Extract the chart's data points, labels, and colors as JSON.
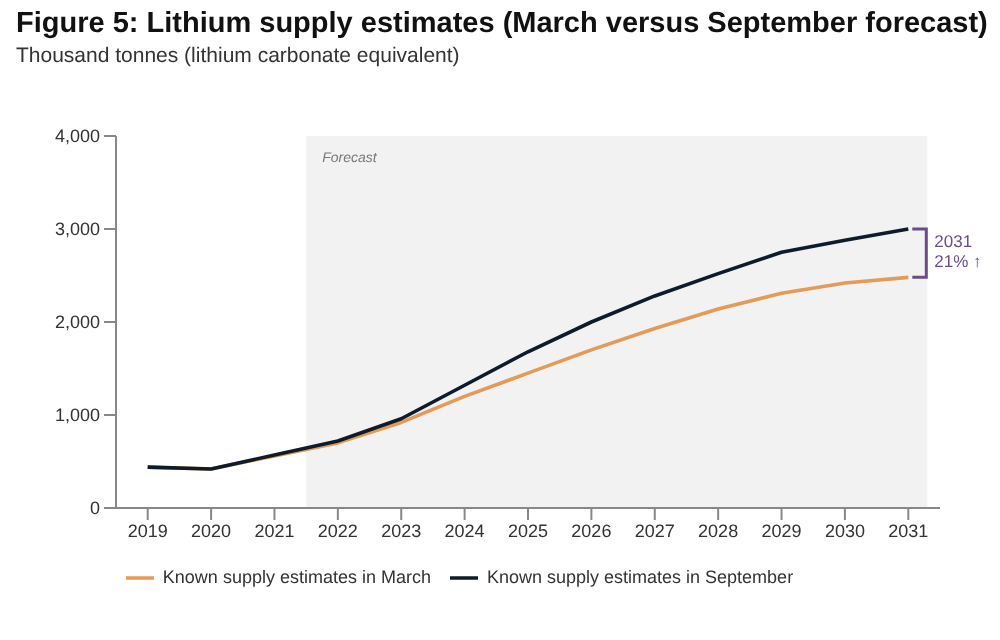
{
  "chart_data": {
    "type": "line",
    "title": "Figure 5: Lithium supply estimates (March versus September forecast)",
    "subtitle": "Thousand tonnes (lithium carbonate equivalent)",
    "x": [
      2019,
      2020,
      2021,
      2022,
      2023,
      2024,
      2025,
      2026,
      2027,
      2028,
      2029,
      2030,
      2031
    ],
    "series": [
      {
        "name": "Known supply estimates in March",
        "color": "#e39b57",
        "values": [
          440,
          420,
          560,
          700,
          920,
          1200,
          1450,
          1700,
          1930,
          2140,
          2310,
          2420,
          2480
        ]
      },
      {
        "name": "Known supply estimates in September",
        "color": "#0d1b2a",
        "values": [
          440,
          420,
          570,
          720,
          960,
          1320,
          1680,
          2000,
          2280,
          2520,
          2750,
          2880,
          3000
        ]
      }
    ],
    "xlim": [
      2018.5,
      2031.5
    ],
    "xticks": [
      2019,
      2020,
      2021,
      2022,
      2023,
      2024,
      2025,
      2026,
      2027,
      2028,
      2029,
      2030,
      2031
    ],
    "ylim": [
      0,
      4000
    ],
    "yticks": [
      0,
      {
        "value": 1000,
        "label": "1,000"
      },
      {
        "value": 2000,
        "label": "2,000"
      },
      {
        "value": 3000,
        "label": "3,000"
      },
      {
        "value": 4000,
        "label": "4,000"
      }
    ],
    "bands": [
      {
        "axis": "x",
        "from": 2021.5,
        "to": 2031.3,
        "label": "Forecast",
        "color": "#f2f2f2"
      }
    ],
    "annotations": [
      "2031\n21% ↑"
    ],
    "grid": false,
    "legend": "bottom",
    "marker": "none",
    "line_style": "solid"
  }
}
